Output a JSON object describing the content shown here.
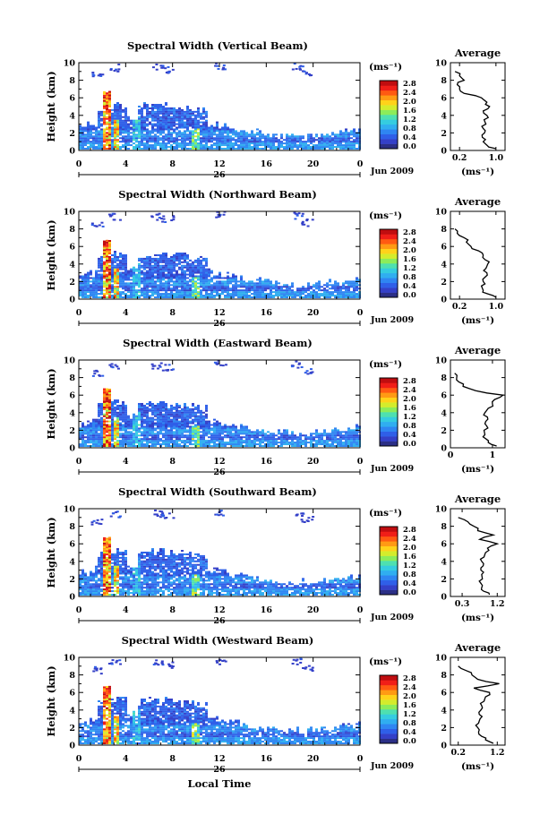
{
  "colors": {
    "colormap": [
      "#2b2f86",
      "#3440c8",
      "#2f5fe8",
      "#2f86f2",
      "#30aef0",
      "#35cce0",
      "#4ee0b0",
      "#8cec5a",
      "#d4ec2c",
      "#ffd21a",
      "#ff9a14",
      "#ff5a12",
      "#f01e18",
      "#c00d10"
    ],
    "line": "#000000"
  },
  "shared": {
    "ylabel": "Height (km)",
    "units": "(ms⁻¹)",
    "date_label": "Jun 2009",
    "day_label": "26",
    "xlabel": "Local Time",
    "avg_title": "Average",
    "avg_unit": "(ms⁻¹)"
  },
  "chart_data": [
    {
      "type": "heatmap",
      "title": "Spectral Width (Vertical Beam)",
      "ylabel": "Height (km)",
      "x_ticks": [
        "0",
        "4",
        "8",
        "12",
        "16",
        "20",
        "0"
      ],
      "xlim": [
        0,
        24
      ],
      "y_ticks": [
        "0",
        "2",
        "4",
        "6",
        "8",
        "10"
      ],
      "ylim": [
        0,
        10
      ],
      "colorbar": {
        "label": "(ms⁻¹)",
        "ticks": [
          "0.0",
          "0.4",
          "0.8",
          "1.2",
          "1.6",
          "2.0",
          "2.4",
          "2.8"
        ],
        "range": [
          0,
          2.8
        ]
      },
      "average": {
        "title": "Average",
        "xlabel": "(ms⁻¹)",
        "x_ticks": [
          "0.2",
          "1.0"
        ],
        "xlim": [
          0,
          1.2
        ],
        "heights": [
          0.2,
          0.6,
          1,
          1.5,
          2,
          2.5,
          3,
          3.5,
          4,
          4.5,
          5,
          5.5,
          6,
          6.5,
          7,
          7.5,
          8,
          8.5,
          9
        ],
        "values": [
          1.0,
          0.8,
          0.72,
          0.7,
          0.75,
          0.72,
          0.78,
          0.74,
          0.8,
          0.72,
          0.86,
          0.8,
          0.68,
          0.3,
          0.2,
          0.15,
          0.3,
          0.2,
          0.1
        ]
      }
    },
    {
      "type": "heatmap",
      "title": "Spectral Width (Northward Beam)",
      "ylabel": "Height (km)",
      "x_ticks": [
        "0",
        "4",
        "8",
        "12",
        "16",
        "20",
        "0"
      ],
      "xlim": [
        0,
        24
      ],
      "y_ticks": [
        "0",
        "2",
        "4",
        "6",
        "8",
        "10"
      ],
      "ylim": [
        0,
        10
      ],
      "colorbar": {
        "label": "(ms⁻¹)",
        "ticks": [
          "0.0",
          "0.4",
          "0.8",
          "1.2",
          "1.6",
          "2.0",
          "2.4",
          "2.8"
        ],
        "range": [
          0,
          2.8
        ]
      },
      "average": {
        "title": "Average",
        "xlabel": "(ms⁻¹)",
        "x_ticks": [
          "0.2",
          "1.0"
        ],
        "xlim": [
          0,
          1.2
        ],
        "heights": [
          0.2,
          0.6,
          1,
          1.5,
          2,
          2.5,
          3,
          3.5,
          4,
          4.5,
          5,
          5.5,
          6,
          6.5,
          7,
          7.5,
          8
        ],
        "values": [
          1.0,
          0.82,
          0.72,
          0.68,
          0.72,
          0.76,
          0.8,
          0.78,
          0.82,
          0.76,
          0.72,
          0.62,
          0.45,
          0.35,
          0.3,
          0.15,
          0.1
        ]
      }
    },
    {
      "type": "heatmap",
      "title": "Spectral Width (Eastward Beam)",
      "ylabel": "Height (km)",
      "x_ticks": [
        "0",
        "4",
        "8",
        "12",
        "16",
        "20",
        "0"
      ],
      "xlim": [
        0,
        24
      ],
      "y_ticks": [
        "0",
        "2",
        "4",
        "6",
        "8",
        "10"
      ],
      "ylim": [
        0,
        10
      ],
      "colorbar": {
        "label": "(ms⁻¹)",
        "ticks": [
          "0.0",
          "0.4",
          "0.8",
          "1.2",
          "1.6",
          "2.0",
          "2.4",
          "2.8"
        ],
        "range": [
          0,
          2.8
        ]
      },
      "average": {
        "title": "Average",
        "xlabel": "(ms⁻¹)",
        "x_ticks": [
          "0",
          "1"
        ],
        "xlim": [
          0,
          1.3
        ],
        "heights": [
          0.2,
          0.6,
          1,
          1.5,
          2,
          2.5,
          3,
          3.5,
          4,
          4.5,
          5,
          5.5,
          6,
          6.5,
          7,
          7.5,
          8,
          8.5
        ],
        "values": [
          1.1,
          0.9,
          0.85,
          0.82,
          0.8,
          0.86,
          0.84,
          0.88,
          0.82,
          0.9,
          1.0,
          1.05,
          1.25,
          0.6,
          0.3,
          0.2,
          0.15,
          0.1
        ]
      }
    },
    {
      "type": "heatmap",
      "title": "Spectral Width (Southward Beam)",
      "ylabel": "Height (km)",
      "x_ticks": [
        "0",
        "4",
        "8",
        "12",
        "16",
        "20",
        "0"
      ],
      "xlim": [
        0,
        24
      ],
      "y_ticks": [
        "0",
        "2",
        "4",
        "6",
        "8",
        "10"
      ],
      "ylim": [
        0,
        10
      ],
      "colorbar": {
        "label": "(ms⁻¹)",
        "ticks": [
          "0.0",
          "0.4",
          "0.8",
          "1.2",
          "1.6",
          "2.0",
          "2.4",
          "2.8"
        ],
        "range": [
          0,
          2.8
        ]
      },
      "average": {
        "title": "Average",
        "xlabel": "(ms⁻¹)",
        "x_ticks": [
          "0.3",
          "1.2"
        ],
        "xlim": [
          0,
          1.4
        ],
        "heights": [
          0.2,
          0.6,
          1,
          1.5,
          2,
          2.5,
          3,
          3.5,
          4,
          4.5,
          5,
          5.5,
          6,
          6.5,
          7,
          7.5,
          8,
          8.5,
          9
        ],
        "values": [
          1.0,
          0.85,
          0.8,
          0.78,
          0.82,
          0.8,
          0.78,
          0.84,
          0.8,
          0.86,
          0.9,
          0.95,
          1.2,
          0.75,
          1.1,
          0.7,
          0.6,
          0.45,
          0.2
        ]
      }
    },
    {
      "type": "heatmap",
      "title": "Spectral Width (Westward Beam)",
      "ylabel": "Height (km)",
      "x_ticks": [
        "0",
        "4",
        "8",
        "12",
        "16",
        "20",
        "0"
      ],
      "xlim": [
        0,
        24
      ],
      "y_ticks": [
        "0",
        "2",
        "4",
        "6",
        "8",
        "10"
      ],
      "ylim": [
        0,
        10
      ],
      "colorbar": {
        "label": "(ms⁻¹)",
        "ticks": [
          "0.0",
          "0.4",
          "0.8",
          "1.2",
          "1.6",
          "2.0",
          "2.4",
          "2.8"
        ],
        "range": [
          0,
          2.8
        ]
      },
      "average": {
        "title": "Average",
        "xlabel": "(ms⁻¹)",
        "x_ticks": [
          "0.2",
          "1.2"
        ],
        "xlim": [
          0,
          1.4
        ],
        "heights": [
          0.2,
          0.6,
          1,
          1.5,
          2,
          2.5,
          3,
          3.5,
          4,
          4.5,
          5,
          5.5,
          6,
          6.5,
          7,
          7.5,
          8,
          8.5,
          9
        ],
        "values": [
          1.1,
          0.9,
          0.8,
          0.72,
          0.7,
          0.72,
          0.76,
          0.74,
          0.78,
          0.8,
          0.86,
          0.9,
          1.0,
          0.6,
          1.25,
          0.7,
          0.55,
          0.4,
          0.2
        ]
      }
    }
  ]
}
